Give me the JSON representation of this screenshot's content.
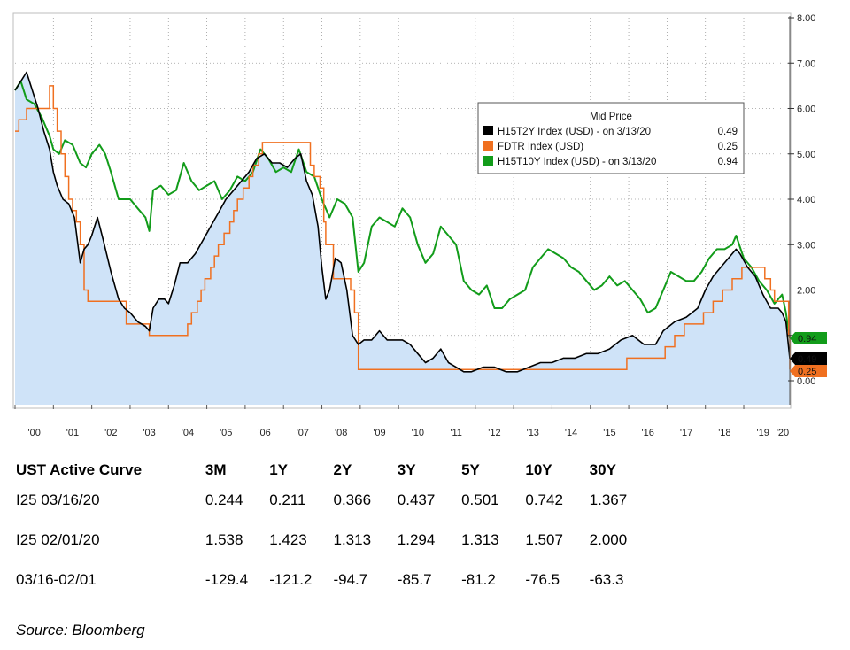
{
  "chart_data": {
    "type": "line",
    "legend": {
      "title": "Mid Price",
      "placement": "top-right",
      "entries": [
        {
          "label": "H15T2Y Index (USD) -  on 3/13/20",
          "value": "0.49",
          "color": "#000000"
        },
        {
          "label": "FDTR Index (USD)",
          "value": "0.25",
          "color": "#f07020"
        },
        {
          "label": "H15T10Y Index (USD) -  on 3/13/20",
          "value": "0.94",
          "color": "#129c1a"
        }
      ]
    },
    "xlim": [
      2000,
      2020.2
    ],
    "ylim": [
      -0.5,
      8.0
    ],
    "grid": true,
    "x_tick_labels": [
      "'00",
      "'01",
      "'02",
      "'03",
      "'04",
      "'05",
      "'06",
      "'07",
      "'08",
      "'09",
      "'10",
      "'11",
      "'12",
      "'13",
      "'14",
      "'15",
      "'16",
      "'17",
      "'18",
      "'19",
      "'20"
    ],
    "y_tick_labels": [
      "8.00",
      "7.00",
      "6.00",
      "5.00",
      "4.00",
      "3.00",
      "2.00",
      "1.00",
      "0.00"
    ],
    "end_badges": [
      {
        "text": "0.94",
        "color": "#129c1a"
      },
      {
        "text": "0.49",
        "color": "#000000"
      },
      {
        "text": "0.25",
        "color": "#f07020"
      }
    ],
    "series": [
      {
        "name": "H15T2Y Index (USD)",
        "color": "#000000",
        "area_fill": "#cfe3f8",
        "x": [
          2000.0,
          2000.15,
          2000.3,
          2000.45,
          2000.6,
          2000.75,
          2000.9,
          2001.0,
          2001.1,
          2001.25,
          2001.4,
          2001.55,
          2001.7,
          2001.8,
          2001.9,
          2002.0,
          2002.15,
          2002.3,
          2002.5,
          2002.7,
          2002.85,
          2003.0,
          2003.2,
          2003.4,
          2003.5,
          2003.6,
          2003.75,
          2003.9,
          2004.0,
          2004.15,
          2004.3,
          2004.5,
          2004.7,
          2004.9,
          2005.1,
          2005.3,
          2005.5,
          2005.7,
          2005.9,
          2006.1,
          2006.3,
          2006.5,
          2006.7,
          2006.9,
          2007.1,
          2007.3,
          2007.45,
          2007.6,
          2007.75,
          2007.9,
          2008.0,
          2008.1,
          2008.2,
          2008.35,
          2008.5,
          2008.65,
          2008.8,
          2008.95,
          2009.1,
          2009.3,
          2009.5,
          2009.7,
          2009.9,
          2010.1,
          2010.3,
          2010.5,
          2010.7,
          2010.9,
          2011.1,
          2011.3,
          2011.5,
          2011.7,
          2011.9,
          2012.2,
          2012.5,
          2012.8,
          2013.1,
          2013.4,
          2013.7,
          2014.0,
          2014.3,
          2014.6,
          2014.9,
          2015.2,
          2015.5,
          2015.8,
          2016.1,
          2016.4,
          2016.7,
          2016.9,
          2017.2,
          2017.5,
          2017.8,
          2018.0,
          2018.2,
          2018.4,
          2018.6,
          2018.8,
          2018.9,
          2019.1,
          2019.3,
          2019.5,
          2019.7,
          2019.9,
          2020.0,
          2020.1,
          2020.15,
          2020.2
        ],
        "y": [
          6.4,
          6.6,
          6.8,
          6.4,
          6.0,
          5.5,
          5.1,
          4.6,
          4.3,
          4.0,
          3.9,
          3.6,
          2.6,
          2.9,
          3.0,
          3.2,
          3.6,
          3.1,
          2.4,
          1.8,
          1.6,
          1.5,
          1.3,
          1.2,
          1.1,
          1.6,
          1.8,
          1.8,
          1.7,
          2.1,
          2.6,
          2.6,
          2.8,
          3.1,
          3.4,
          3.7,
          4.0,
          4.2,
          4.4,
          4.6,
          4.9,
          5.0,
          4.8,
          4.8,
          4.7,
          4.9,
          5.0,
          4.4,
          4.1,
          3.4,
          2.5,
          1.8,
          2.0,
          2.7,
          2.6,
          2.0,
          1.0,
          0.8,
          0.9,
          0.9,
          1.1,
          0.9,
          0.9,
          0.9,
          0.8,
          0.6,
          0.4,
          0.5,
          0.7,
          0.4,
          0.3,
          0.2,
          0.2,
          0.3,
          0.3,
          0.2,
          0.2,
          0.3,
          0.4,
          0.4,
          0.5,
          0.5,
          0.6,
          0.6,
          0.7,
          0.9,
          1.0,
          0.8,
          0.8,
          1.1,
          1.3,
          1.4,
          1.6,
          2.0,
          2.3,
          2.5,
          2.7,
          2.9,
          2.8,
          2.5,
          2.3,
          1.9,
          1.6,
          1.6,
          1.5,
          1.3,
          0.9,
          0.49
        ]
      },
      {
        "name": "FDTR Index (USD)",
        "color": "#f07020",
        "step": true,
        "x": [
          2000.0,
          2000.1,
          2000.3,
          2000.9,
          2001.0,
          2001.1,
          2001.2,
          2001.3,
          2001.4,
          2001.5,
          2001.6,
          2001.7,
          2001.8,
          2001.9,
          2002.9,
          2003.5,
          2004.5,
          2004.6,
          2004.75,
          2004.85,
          2004.95,
          2005.1,
          2005.2,
          2005.3,
          2005.45,
          2005.6,
          2005.7,
          2005.8,
          2005.95,
          2006.1,
          2006.2,
          2006.35,
          2006.45,
          2007.7,
          2007.8,
          2007.95,
          2008.05,
          2008.1,
          2008.3,
          2008.75,
          2008.85,
          2008.95,
          2015.95,
          2016.95,
          2017.2,
          2017.45,
          2017.95,
          2018.2,
          2018.45,
          2018.7,
          2018.95,
          2019.55,
          2019.7,
          2019.8,
          2020.17,
          2020.2
        ],
        "y": [
          5.5,
          5.75,
          6.0,
          6.5,
          6.0,
          5.5,
          5.0,
          4.5,
          4.0,
          3.75,
          3.5,
          3.0,
          2.0,
          1.75,
          1.25,
          1.0,
          1.25,
          1.5,
          1.75,
          2.0,
          2.25,
          2.5,
          2.75,
          3.0,
          3.25,
          3.5,
          3.75,
          4.0,
          4.25,
          4.5,
          4.75,
          5.0,
          5.25,
          4.75,
          4.5,
          4.25,
          3.5,
          3.0,
          2.25,
          2.0,
          1.5,
          0.25,
          0.5,
          0.75,
          1.0,
          1.25,
          1.5,
          1.75,
          2.0,
          2.25,
          2.5,
          2.25,
          2.0,
          1.75,
          1.0,
          0.25
        ]
      },
      {
        "name": "H15T10Y Index (USD)",
        "color": "#129c1a",
        "x": [
          2000.0,
          2000.15,
          2000.3,
          2000.5,
          2000.7,
          2000.9,
          2001.0,
          2001.15,
          2001.3,
          2001.5,
          2001.7,
          2001.85,
          2002.0,
          2002.2,
          2002.35,
          2002.5,
          2002.7,
          2002.85,
          2003.0,
          2003.2,
          2003.4,
          2003.5,
          2003.6,
          2003.8,
          2004.0,
          2004.2,
          2004.4,
          2004.6,
          2004.8,
          2005.0,
          2005.2,
          2005.4,
          2005.6,
          2005.8,
          2006.0,
          2006.2,
          2006.4,
          2006.6,
          2006.8,
          2007.0,
          2007.2,
          2007.4,
          2007.6,
          2007.8,
          2008.0,
          2008.2,
          2008.4,
          2008.6,
          2008.8,
          2008.95,
          2009.1,
          2009.3,
          2009.5,
          2009.7,
          2009.9,
          2010.1,
          2010.3,
          2010.5,
          2010.7,
          2010.9,
          2011.1,
          2011.3,
          2011.5,
          2011.7,
          2011.9,
          2012.1,
          2012.3,
          2012.5,
          2012.7,
          2012.9,
          2013.1,
          2013.3,
          2013.5,
          2013.7,
          2013.9,
          2014.1,
          2014.3,
          2014.5,
          2014.7,
          2014.9,
          2015.1,
          2015.3,
          2015.5,
          2015.7,
          2015.9,
          2016.1,
          2016.3,
          2016.5,
          2016.7,
          2016.9,
          2017.1,
          2017.3,
          2017.5,
          2017.7,
          2017.9,
          2018.1,
          2018.3,
          2018.5,
          2018.7,
          2018.8,
          2019.0,
          2019.2,
          2019.4,
          2019.6,
          2019.8,
          2020.0,
          2020.1,
          2020.15,
          2020.2
        ],
        "y": [
          6.4,
          6.6,
          6.2,
          6.1,
          5.8,
          5.4,
          5.1,
          5.0,
          5.3,
          5.2,
          4.8,
          4.7,
          5.0,
          5.2,
          5.0,
          4.6,
          4.0,
          4.0,
          4.0,
          3.8,
          3.6,
          3.3,
          4.2,
          4.3,
          4.1,
          4.2,
          4.8,
          4.4,
          4.2,
          4.3,
          4.4,
          4.0,
          4.2,
          4.5,
          4.4,
          4.6,
          5.1,
          4.9,
          4.6,
          4.7,
          4.6,
          5.1,
          4.6,
          4.5,
          4.0,
          3.6,
          4.0,
          3.9,
          3.6,
          2.4,
          2.6,
          3.4,
          3.6,
          3.5,
          3.4,
          3.8,
          3.6,
          3.0,
          2.6,
          2.8,
          3.4,
          3.2,
          3.0,
          2.2,
          2.0,
          1.9,
          2.1,
          1.6,
          1.6,
          1.8,
          1.9,
          2.0,
          2.5,
          2.7,
          2.9,
          2.8,
          2.7,
          2.5,
          2.4,
          2.2,
          2.0,
          2.1,
          2.3,
          2.1,
          2.2,
          2.0,
          1.8,
          1.5,
          1.6,
          2.0,
          2.4,
          2.3,
          2.2,
          2.2,
          2.4,
          2.7,
          2.9,
          2.9,
          3.0,
          3.2,
          2.7,
          2.5,
          2.2,
          2.0,
          1.7,
          1.9,
          1.5,
          1.2,
          0.94
        ]
      }
    ]
  },
  "table": {
    "header": [
      "UST Active Curve",
      "3M",
      "1Y",
      "2Y",
      "3Y",
      "5Y",
      "10Y",
      "30Y"
    ],
    "rows": [
      {
        "label": "I25 03/16/20",
        "values": [
          "0.244",
          "0.211",
          "0.366",
          "0.437",
          "0.501",
          "0.742",
          "1.367"
        ]
      },
      {
        "label": "I25 02/01/20",
        "values": [
          "1.538",
          "1.423",
          "1.313",
          "1.294",
          "1.313",
          "1.507",
          "2.000"
        ]
      },
      {
        "label": "03/16-02/01",
        "values": [
          "-129.4",
          "-121.2",
          "-94.7",
          "-85.7",
          "-81.2",
          "-76.5",
          "-63.3"
        ]
      }
    ]
  },
  "source": "Source: Bloomberg"
}
